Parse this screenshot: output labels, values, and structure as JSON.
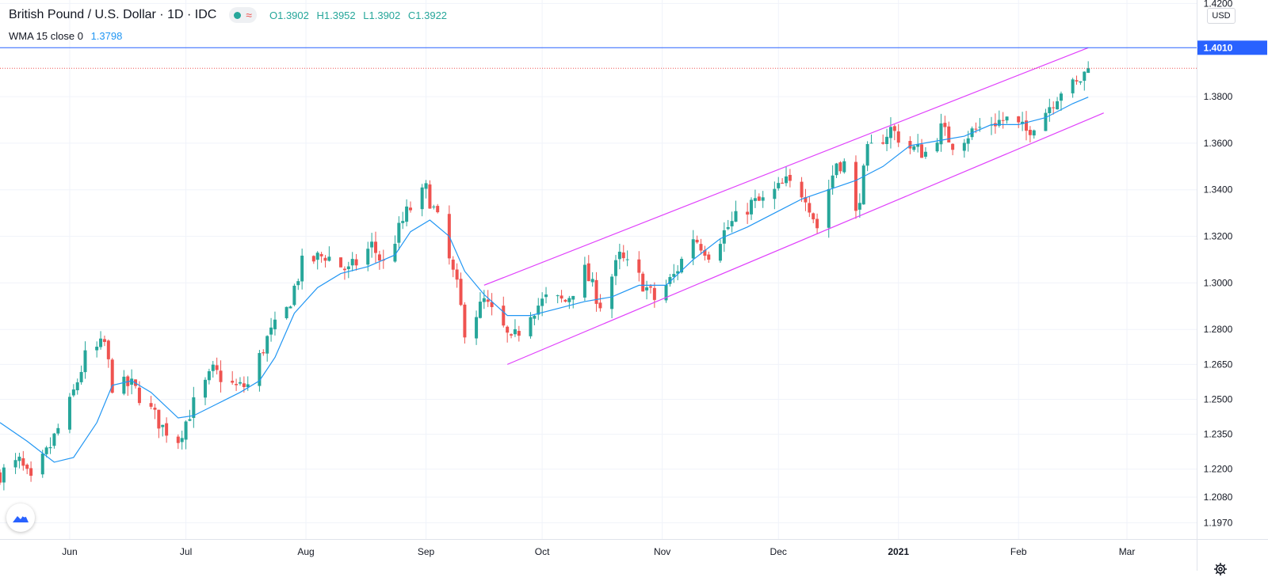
{
  "header": {
    "symbol_title": "British Pound / U.S. Dollar · 1D · IDC",
    "open": "O1.3902",
    "high": "H1.3952",
    "low": "L1.3902",
    "close": "C1.3922"
  },
  "indicator": {
    "label": "WMA 15 close 0",
    "value": "1.3798"
  },
  "currency_button": "USD",
  "colors": {
    "up": "#26a69a",
    "down": "#ef5350",
    "wma": "#2196f3",
    "channel": "#e040fb",
    "hline": "#2962ff",
    "hline_label_bg": "#2962ff",
    "last_price_line": "#ef5350"
  },
  "icons": {
    "logo": "tradingview-logo-icon",
    "settings": "gear-icon"
  },
  "chart_data": {
    "type": "candlestick",
    "title": "British Pound / U.S. Dollar · 1D · IDC",
    "y_axis_side": "right",
    "ylim": [
      1.19,
      1.4215
    ],
    "xlim": [
      "2020-05-14",
      "2021-03-19"
    ],
    "y_ticks": [
      1.42,
      1.38,
      1.36,
      1.34,
      1.32,
      1.3,
      1.28,
      1.265,
      1.25,
      1.235,
      1.22,
      1.208,
      1.197
    ],
    "y_tick_labels": [
      "1.4200",
      "1.3800",
      "1.3600",
      "1.3400",
      "1.3200",
      "1.3000",
      "1.2800",
      "1.2650",
      "1.2500",
      "1.2350",
      "1.2200",
      "1.2080",
      "1.1970"
    ],
    "x_ticks": [
      {
        "date": "2020-06-01",
        "label": "Jun",
        "bold": false
      },
      {
        "date": "2020-07-01",
        "label": "Jul",
        "bold": false
      },
      {
        "date": "2020-08-01",
        "label": "Aug",
        "bold": false
      },
      {
        "date": "2020-09-01",
        "label": "Sep",
        "bold": false
      },
      {
        "date": "2020-10-01",
        "label": "Oct",
        "bold": false
      },
      {
        "date": "2020-11-01",
        "label": "Nov",
        "bold": false
      },
      {
        "date": "2020-12-01",
        "label": "Dec",
        "bold": false
      },
      {
        "date": "2021-01-01",
        "label": "2021",
        "bold": true
      },
      {
        "date": "2021-02-01",
        "label": "Feb",
        "bold": false
      },
      {
        "date": "2021-03-01",
        "label": "Mar",
        "bold": false
      }
    ],
    "horizontal_line": {
      "value": 1.401,
      "label": "1.4010"
    },
    "last_price": 1.3922,
    "channel_lines": [
      {
        "name": "upper-channel",
        "from": {
          "date": "2020-09-16",
          "value": 1.299
        },
        "to": {
          "date": "2021-02-19",
          "value": 1.401
        }
      },
      {
        "name": "lower-channel",
        "from": {
          "date": "2020-09-22",
          "value": 1.265
        },
        "to": {
          "date": "2021-02-23",
          "value": 1.373
        }
      }
    ],
    "wma_anchors": [
      [
        "2020-05-14",
        1.24
      ],
      [
        "2020-05-21",
        1.232
      ],
      [
        "2020-05-28",
        1.223
      ],
      [
        "2020-06-02",
        1.225
      ],
      [
        "2020-06-08",
        1.24
      ],
      [
        "2020-06-12",
        1.256
      ],
      [
        "2020-06-17",
        1.258
      ],
      [
        "2020-06-22",
        1.253
      ],
      [
        "2020-06-29",
        1.242
      ],
      [
        "2020-07-03",
        1.243
      ],
      [
        "2020-07-09",
        1.248
      ],
      [
        "2020-07-15",
        1.253
      ],
      [
        "2020-07-20",
        1.258
      ],
      [
        "2020-07-24",
        1.268
      ],
      [
        "2020-07-29",
        1.287
      ],
      [
        "2020-08-04",
        1.298
      ],
      [
        "2020-08-10",
        1.304
      ],
      [
        "2020-08-17",
        1.307
      ],
      [
        "2020-08-24",
        1.312
      ],
      [
        "2020-08-28",
        1.322
      ],
      [
        "2020-09-02",
        1.327
      ],
      [
        "2020-09-07",
        1.32
      ],
      [
        "2020-09-11",
        1.305
      ],
      [
        "2020-09-16",
        1.295
      ],
      [
        "2020-09-22",
        1.286
      ],
      [
        "2020-09-28",
        1.286
      ],
      [
        "2020-10-05",
        1.289
      ],
      [
        "2020-10-12",
        1.292
      ],
      [
        "2020-10-19",
        1.294
      ],
      [
        "2020-10-26",
        1.299
      ],
      [
        "2020-11-02",
        1.299
      ],
      [
        "2020-11-09",
        1.31
      ],
      [
        "2020-11-16",
        1.319
      ],
      [
        "2020-11-23",
        1.324
      ],
      [
        "2020-11-30",
        1.33
      ],
      [
        "2020-12-07",
        1.336
      ],
      [
        "2020-12-14",
        1.34
      ],
      [
        "2020-12-21",
        1.344
      ],
      [
        "2020-12-28",
        1.35
      ],
      [
        "2021-01-04",
        1.359
      ],
      [
        "2021-01-11",
        1.361
      ],
      [
        "2021-01-18",
        1.363
      ],
      [
        "2021-01-25",
        1.368
      ],
      [
        "2021-02-01",
        1.368
      ],
      [
        "2021-02-08",
        1.371
      ],
      [
        "2021-02-15",
        1.377
      ],
      [
        "2021-02-19",
        1.3798
      ]
    ],
    "close_anchors": [
      [
        "2020-05-14",
        1.218
      ],
      [
        "2020-05-19",
        1.223
      ],
      [
        "2020-05-22",
        1.214
      ],
      [
        "2020-05-27",
        1.23
      ],
      [
        "2020-06-01",
        1.248
      ],
      [
        "2020-06-05",
        1.268
      ],
      [
        "2020-06-10",
        1.274
      ],
      [
        "2020-06-12",
        1.256
      ],
      [
        "2020-06-17",
        1.256
      ],
      [
        "2020-06-22",
        1.245
      ],
      [
        "2020-06-25",
        1.238
      ],
      [
        "2020-06-29",
        1.233
      ],
      [
        "2020-07-03",
        1.248
      ],
      [
        "2020-07-08",
        1.262
      ],
      [
        "2020-07-14",
        1.255
      ],
      [
        "2020-07-17",
        1.256
      ],
      [
        "2020-07-22",
        1.276
      ],
      [
        "2020-07-27",
        1.288
      ],
      [
        "2020-07-31",
        1.308
      ],
      [
        "2020-08-06",
        1.312
      ],
      [
        "2020-08-12",
        1.305
      ],
      [
        "2020-08-18",
        1.316
      ],
      [
        "2020-08-21",
        1.308
      ],
      [
        "2020-08-27",
        1.33
      ],
      [
        "2020-09-01",
        1.34
      ],
      [
        "2020-09-04",
        1.327
      ],
      [
        "2020-09-09",
        1.298
      ],
      [
        "2020-09-11",
        1.28
      ],
      [
        "2020-09-16",
        1.292
      ],
      [
        "2020-09-21",
        1.28
      ],
      [
        "2020-09-23",
        1.274
      ],
      [
        "2020-09-28",
        1.288
      ],
      [
        "2020-10-02",
        1.293
      ],
      [
        "2020-10-07",
        1.292
      ],
      [
        "2020-10-12",
        1.305
      ],
      [
        "2020-10-16",
        1.291
      ],
      [
        "2020-10-21",
        1.311
      ],
      [
        "2020-10-26",
        1.302
      ],
      [
        "2020-10-30",
        1.293
      ],
      [
        "2020-11-04",
        1.303
      ],
      [
        "2020-11-09",
        1.32
      ],
      [
        "2020-11-13",
        1.313
      ],
      [
        "2020-11-18",
        1.324
      ],
      [
        "2020-11-24",
        1.334
      ],
      [
        "2020-11-27",
        1.335
      ],
      [
        "2020-12-03",
        1.343
      ],
      [
        "2020-12-08",
        1.338
      ],
      [
        "2020-12-11",
        1.324
      ],
      [
        "2020-12-16",
        1.352
      ],
      [
        "2020-12-18",
        1.351
      ],
      [
        "2020-12-21",
        1.329
      ],
      [
        "2020-12-24",
        1.356
      ],
      [
        "2020-12-30",
        1.366
      ],
      [
        "2021-01-04",
        1.358
      ],
      [
        "2021-01-08",
        1.356
      ],
      [
        "2021-01-12",
        1.366
      ],
      [
        "2021-01-15",
        1.36
      ],
      [
        "2021-01-20",
        1.365
      ],
      [
        "2021-01-25",
        1.369
      ],
      [
        "2021-01-29",
        1.37
      ],
      [
        "2021-02-03",
        1.365
      ],
      [
        "2021-02-08",
        1.374
      ],
      [
        "2021-02-12",
        1.383
      ],
      [
        "2021-02-16",
        1.385
      ],
      [
        "2021-02-19",
        1.3922
      ]
    ],
    "series_generation": "Daily weekday candles built from close_anchors (last candle O1.3902 H1.3952 L1.3902 C1.3922)"
  }
}
